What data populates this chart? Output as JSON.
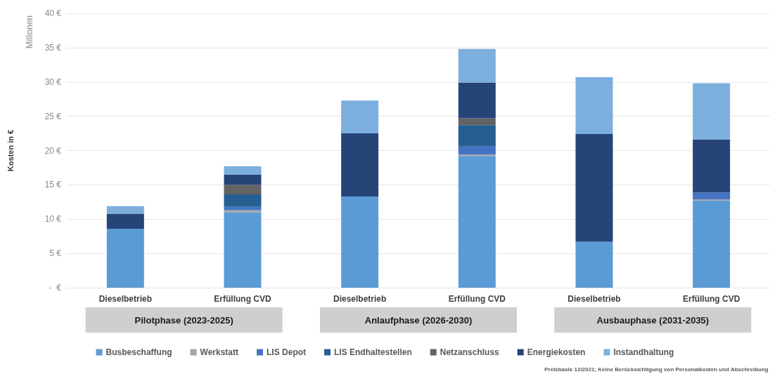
{
  "chart_data": {
    "type": "bar",
    "stacked": true,
    "ylabel": "Kosten in €",
    "categories": [
      "Dieselbetrieb",
      "Erfüllung CVD",
      "Dieselbetrieb",
      "Erfüllung CVD",
      "Dieselbetrieb",
      "Erfüllung CVD"
    ],
    "series": [
      {
        "name": "Busbeschaffung",
        "color": "#5b9bd5",
        "values": [
          8.6,
          11.0,
          13.3,
          19.2,
          6.7,
          12.7
        ]
      },
      {
        "name": "Werkstatt",
        "color": "#a5a5a5",
        "values": [
          0,
          0.3,
          0,
          0.2,
          0,
          0.2
        ]
      },
      {
        "name": "LIS Depot",
        "color": "#4472c4",
        "values": [
          0,
          0.5,
          0,
          1.2,
          0,
          1.0
        ]
      },
      {
        "name": "LIS Endhaltestellen",
        "color": "#255e91",
        "values": [
          0,
          1.8,
          0,
          3.1,
          0,
          0
        ]
      },
      {
        "name": "Netzanschluss",
        "color": "#636363",
        "values": [
          0,
          1.4,
          0,
          1.0,
          0,
          0
        ]
      },
      {
        "name": "Energiekosten",
        "color": "#264478",
        "values": [
          2.2,
          1.5,
          9.2,
          5.2,
          15.7,
          7.7
        ]
      },
      {
        "name": "Instandhaltung",
        "color": "#7cafdd",
        "values": [
          1.1,
          1.2,
          4.8,
          4.9,
          8.3,
          8.2
        ]
      }
    ],
    "ylim": [
      0,
      40
    ],
    "yticks": [
      {
        "value": 0,
        "label": "-  €"
      },
      {
        "value": 5,
        "label": "5 €"
      },
      {
        "value": 10,
        "label": "10 €"
      },
      {
        "value": 15,
        "label": "15 €"
      },
      {
        "value": 20,
        "label": "20 €"
      },
      {
        "value": 25,
        "label": "25 €"
      },
      {
        "value": 30,
        "label": "30 €"
      },
      {
        "value": 35,
        "label": "35 €"
      },
      {
        "value": 40,
        "label": "40 €"
      }
    ],
    "grid": "y",
    "legend": "bottom",
    "annotations": [
      "Millionen",
      "Pilotphase (2023-2025)",
      "Anlaufphase (2026-2030)",
      "Ausbauphase (2031-2035)",
      "Preisbasis 12/2021; Keine Berücksichtigung von Personalkosten und Abschreibung"
    ]
  }
}
